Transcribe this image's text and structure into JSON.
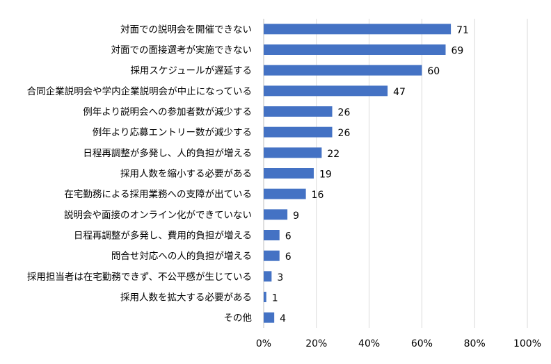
{
  "chart_data": {
    "type": "bar",
    "orientation": "horizontal",
    "categories": [
      "対面での説明会を開催できない",
      "対面での面接選考が実施できない",
      "採用スケジュールが遅延する",
      "合同企業説明会や学内企業説明会が中止になっている",
      "例年より説明会への参加者数が減少する",
      "例年より応募エントリー数が減少する",
      "日程再調整が多発し、人的負担が増える",
      "採用人数を縮小する必要がある",
      "在宅勤務による採用業務への支障が出ている",
      "説明会や面接のオンライン化ができていない",
      "日程再調整が多発し、費用的負担が増える",
      "問合せ対応への人的負担が増える",
      "採用担当者は在宅勤務できず、不公平感が生じている",
      "採用人数を拡大する必要がある",
      "その他"
    ],
    "values": [
      71,
      69,
      60,
      47,
      26,
      26,
      22,
      19,
      16,
      9,
      6,
      6,
      3,
      1,
      4
    ],
    "value_labels": [
      "71",
      "69",
      "60",
      "47",
      "26",
      "26",
      "22",
      "19",
      "16",
      "9",
      "6",
      "6",
      "3",
      "1",
      "4"
    ],
    "xlim": [
      0,
      100
    ],
    "xticks": [
      0,
      20,
      40,
      60,
      80,
      100
    ],
    "xtick_labels": [
      "0%",
      "20%",
      "40%",
      "60%",
      "80%",
      "100%"
    ],
    "bar_color": "#4472c4",
    "grid": true,
    "legend": "none"
  }
}
